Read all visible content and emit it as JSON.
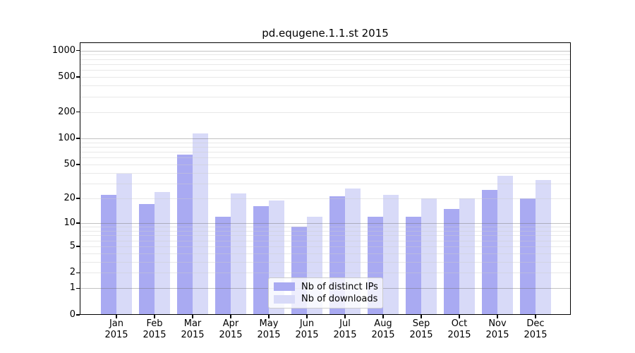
{
  "chart_data": {
    "type": "bar",
    "title": "pd.equgene.1.1.st 2015",
    "categories": [
      "Jan",
      "Feb",
      "Mar",
      "Apr",
      "May",
      "Jun",
      "Jul",
      "Aug",
      "Sep",
      "Oct",
      "Nov",
      "Dec"
    ],
    "x_tick_second_line": "2015",
    "series": [
      {
        "name": "Nb of distinct IPs",
        "color": "#a9aaf2",
        "values": [
          22,
          17,
          65,
          12,
          16,
          9,
          21,
          12,
          12,
          15,
          25,
          20
        ]
      },
      {
        "name": "Nb of downloads",
        "color": "#d8daf8",
        "values": [
          39,
          24,
          114,
          23,
          19,
          12,
          26,
          22,
          20,
          20,
          37,
          33
        ]
      }
    ],
    "y_ticks": [
      0,
      1,
      2,
      5,
      10,
      20,
      50,
      100,
      200,
      500,
      1000
    ],
    "y_scale": "log10(value+1)",
    "ylim": [
      0,
      1250
    ],
    "grid": "on",
    "grid_major_at": [
      1,
      10,
      100,
      1000
    ],
    "legend_position": "bottom-center",
    "background_color": "#ffffff",
    "spine_color": "#000000"
  }
}
